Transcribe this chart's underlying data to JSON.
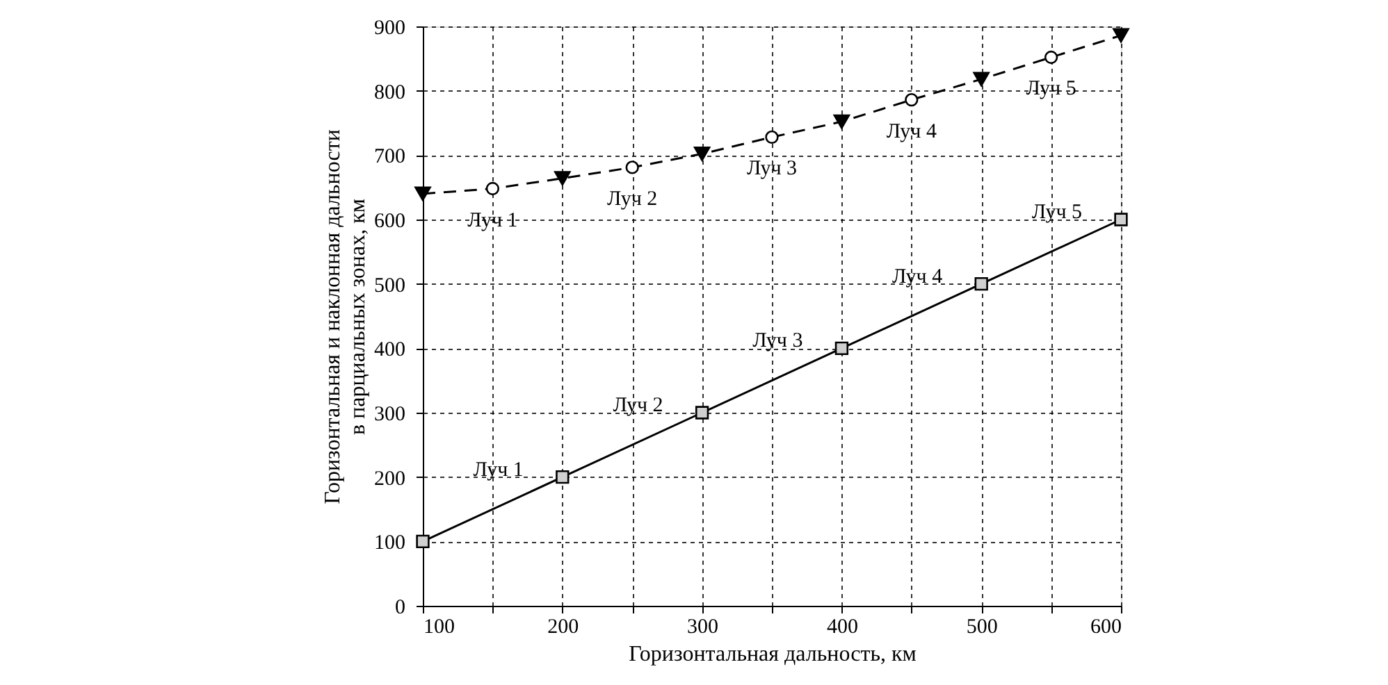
{
  "chart_data": {
    "type": "line",
    "xlabel": "Горизонтальная дальность, км",
    "ylabel": "Горизонтальная и наклонная дальности\nв парциальных зонах, км",
    "xlim": [
      100,
      600
    ],
    "ylim": [
      0,
      900
    ],
    "xticks": [
      100,
      {
        "value": 150,
        "label": null
      },
      200,
      {
        "value": 250,
        "label": null
      },
      300,
      {
        "value": 350,
        "label": null
      },
      400,
      {
        "value": 450,
        "label": null
      },
      500,
      {
        "value": 550,
        "label": null
      },
      600
    ],
    "yticks": [
      0,
      100,
      200,
      300,
      400,
      500,
      600,
      700,
      800,
      900
    ],
    "grid": true,
    "series": [
      {
        "line_style": "dashed",
        "marker": "none",
        "color": "#000000",
        "x": [
          100,
          150,
          200,
          250,
          300,
          350,
          400,
          450,
          500,
          550,
          600
        ],
        "values": [
          640,
          648,
          664,
          681,
          702,
          728,
          752,
          786,
          818,
          852,
          886
        ]
      },
      {
        "type": "scatter",
        "marker": "triangle",
        "color": "#000000",
        "x": [
          100,
          200,
          300,
          400,
          500,
          600
        ],
        "values": [
          640,
          664,
          702,
          752,
          818,
          886
        ]
      },
      {
        "type": "scatter",
        "marker": "circle",
        "color": "#000000",
        "x": [
          150,
          250,
          350,
          450,
          550
        ],
        "values": [
          648,
          681,
          728,
          786,
          852
        ]
      },
      {
        "line_style": "solid",
        "marker": "square",
        "color": "#000000",
        "x": [
          100,
          200,
          300,
          400,
          500,
          600
        ],
        "values": [
          100,
          200,
          300,
          400,
          500,
          600
        ]
      }
    ],
    "annotations": [
      {
        "text": "Луч 1",
        "x": 150,
        "y": 648
      },
      {
        "text": "Луч 2",
        "x": 250,
        "y": 681
      },
      {
        "text": "Луч 3",
        "x": 350,
        "y": 728
      },
      {
        "text": "Луч 4",
        "x": 450,
        "y": 786
      },
      {
        "text": "Луч 5",
        "x": 550,
        "y": 852
      },
      {
        "text": "Луч 1",
        "x": 200,
        "y": 200
      },
      {
        "text": "Луч 2",
        "x": 300,
        "y": 300
      },
      {
        "text": "Луч 3",
        "x": 400,
        "y": 400
      },
      {
        "text": "Луч 4",
        "x": 500,
        "y": 500
      },
      {
        "text": "Луч 5",
        "x": 600,
        "y": 600
      }
    ]
  }
}
